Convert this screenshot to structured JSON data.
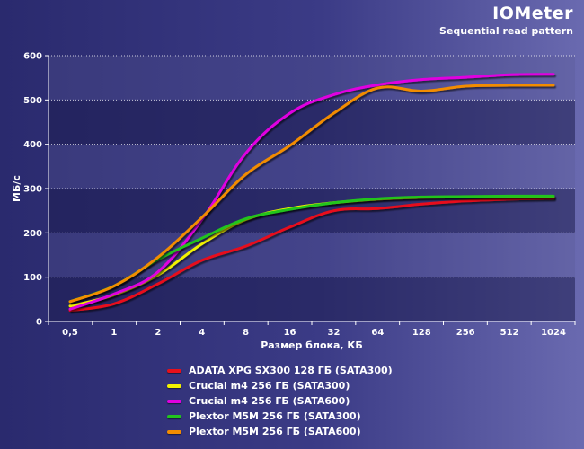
{
  "header": {
    "title": "IOMeter",
    "subtitle": "Sequential read pattern"
  },
  "chart_data": {
    "type": "line",
    "title": "IOMeter",
    "subtitle": "Sequential read pattern",
    "xlabel": "Размер блока, КБ",
    "ylabel": "МБ/с",
    "categories": [
      "0,5",
      "1",
      "2",
      "4",
      "8",
      "16",
      "32",
      "64",
      "128",
      "256",
      "512",
      "1024"
    ],
    "ylim": [
      0,
      600
    ],
    "yticks": [
      0,
      100,
      200,
      300,
      400,
      500,
      600
    ],
    "grid": true,
    "legend_position": "bottom",
    "series": [
      {
        "name": "ADATA XPG SX300 128 ГБ (SATA300)",
        "color": "#e8101a",
        "values": [
          25,
          40,
          85,
          138,
          170,
          213,
          250,
          255,
          265,
          272,
          276,
          278
        ]
      },
      {
        "name": "Crucial m4 256 ГБ (SATA300)",
        "color": "#f2f200",
        "values": [
          35,
          60,
          105,
          175,
          230,
          255,
          268,
          276,
          280,
          281,
          281,
          281
        ]
      },
      {
        "name": "Crucial m4 256 ГБ (SATA600)",
        "color": "#e000e0",
        "values": [
          28,
          62,
          112,
          230,
          380,
          470,
          512,
          534,
          546,
          551,
          557,
          558
        ]
      },
      {
        "name": "Plextor M5M 256 ГБ (SATA300)",
        "color": "#22c41e",
        "values": [
          45,
          80,
          140,
          188,
          232,
          253,
          268,
          277,
          281,
          282,
          283,
          283
        ]
      },
      {
        "name": "Plextor M5M 256 ГБ (SATA600)",
        "color": "#f28c00",
        "values": [
          45,
          80,
          145,
          235,
          332,
          397,
          470,
          527,
          520,
          531,
          533,
          533
        ]
      }
    ]
  }
}
